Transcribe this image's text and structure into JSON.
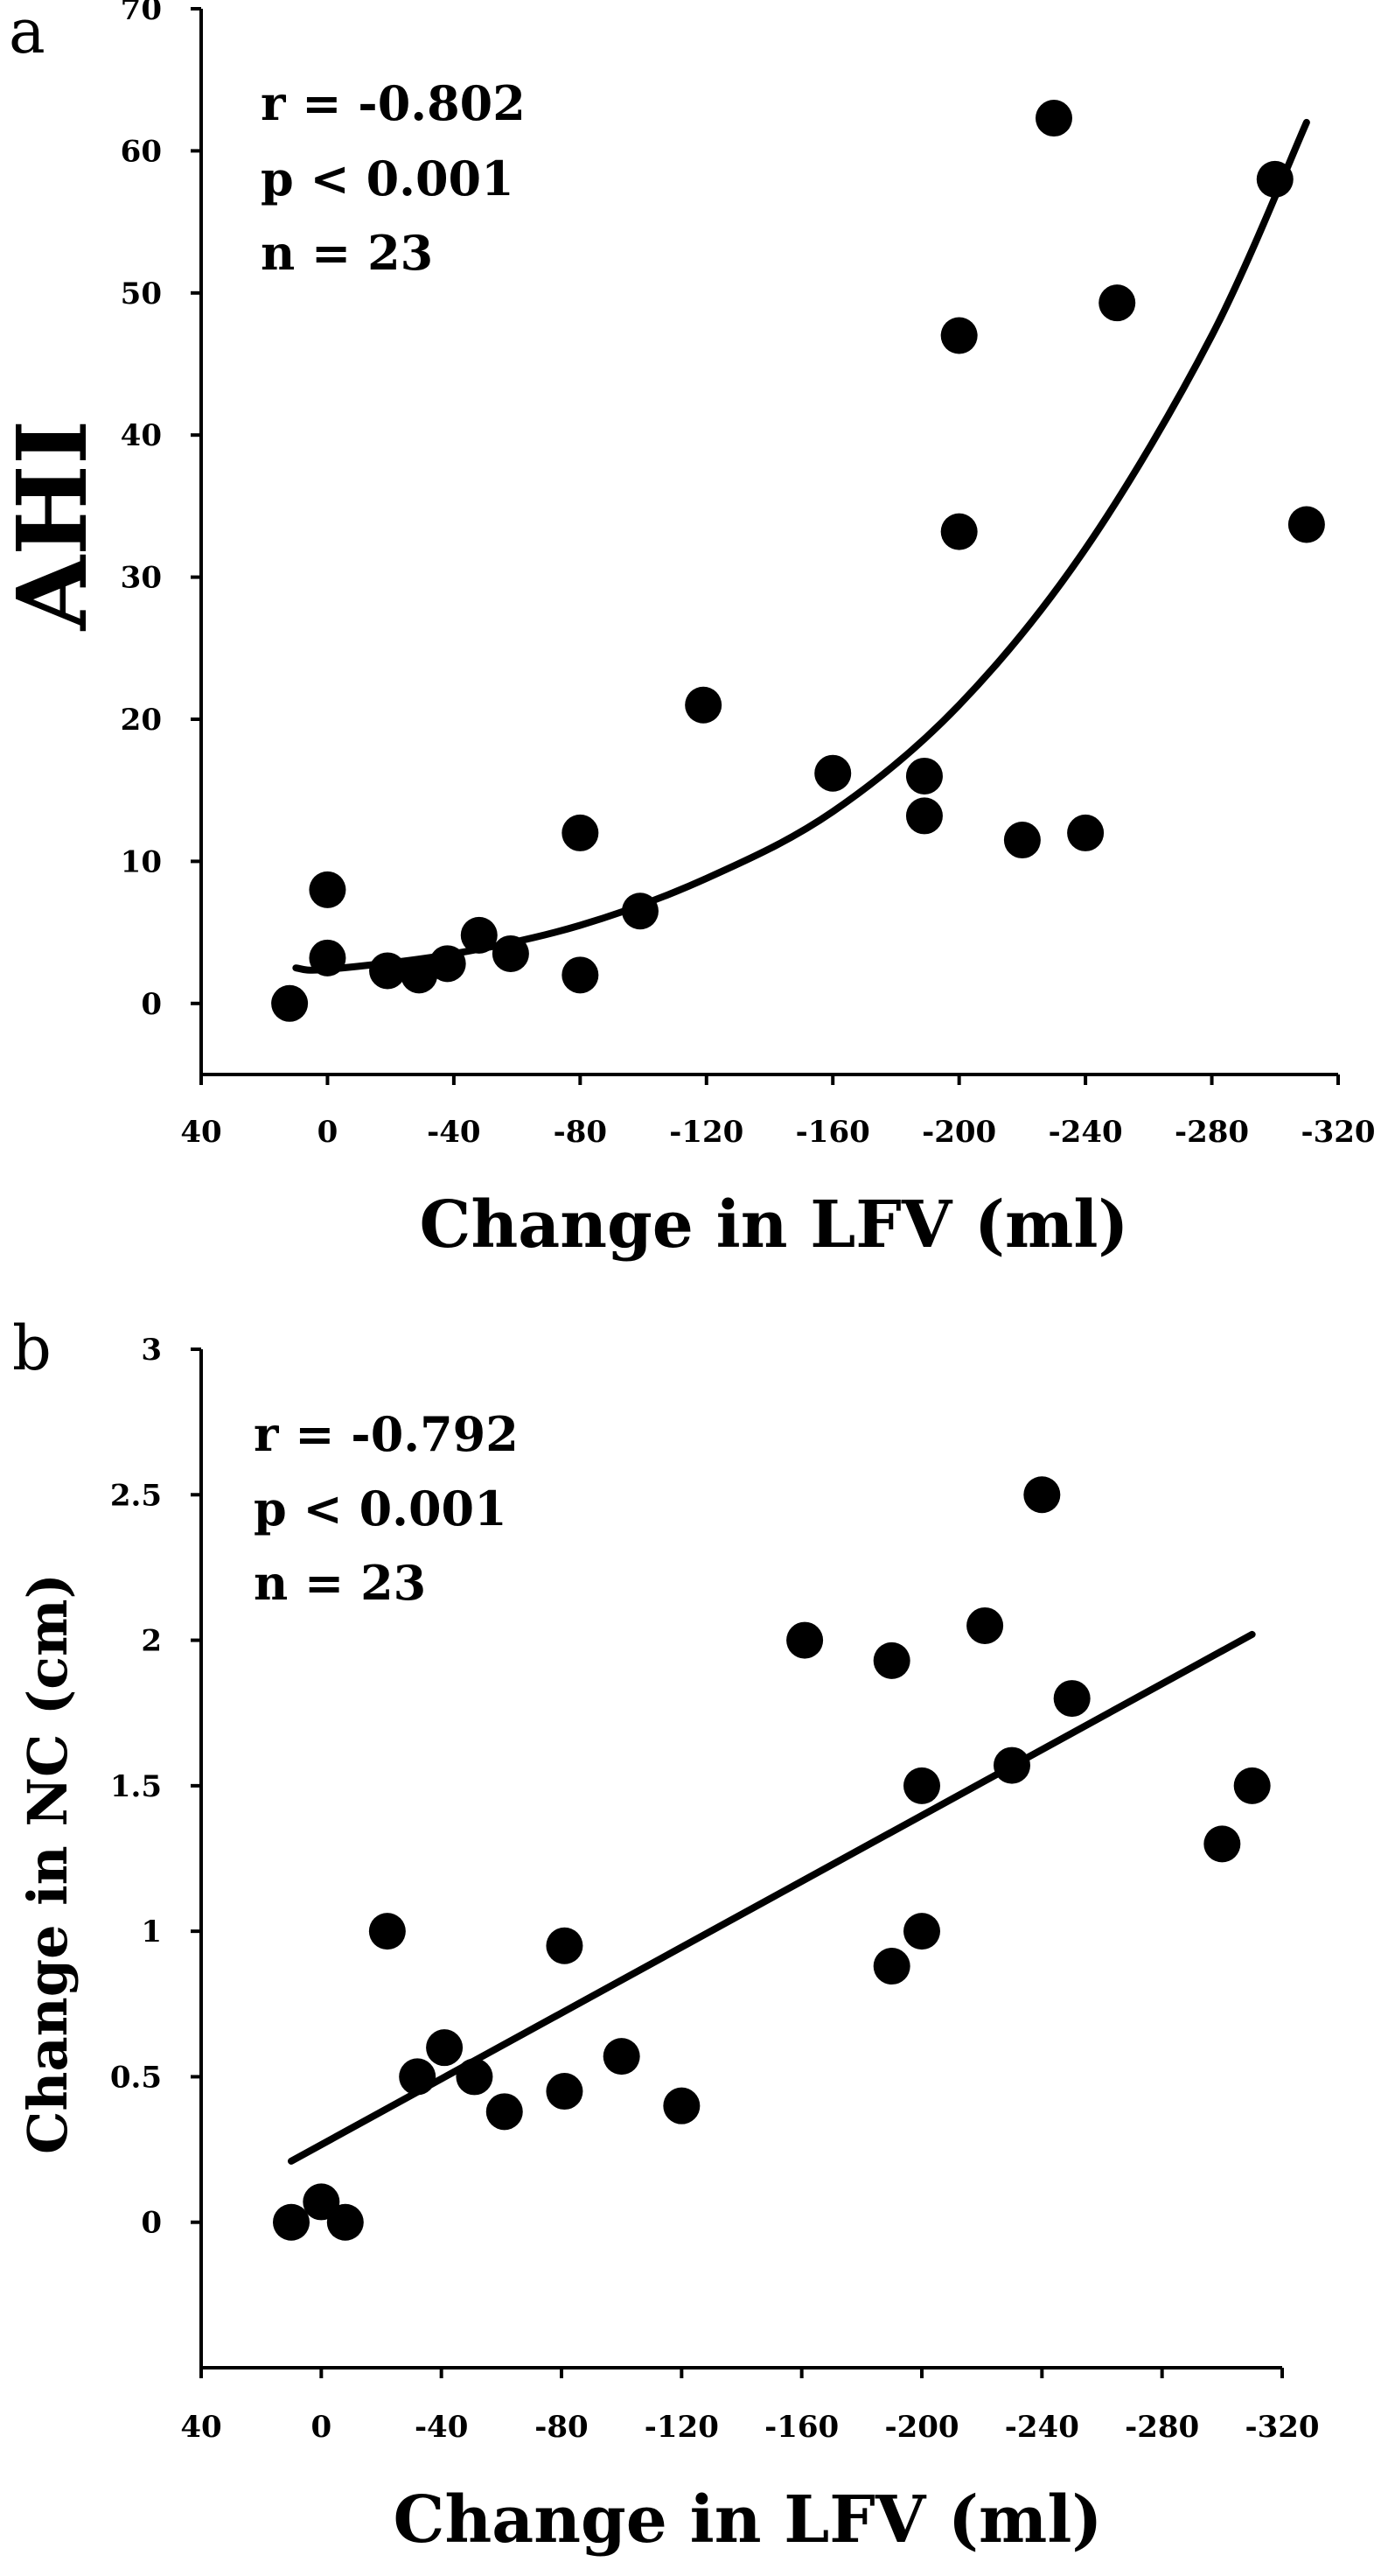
{
  "chart_data": [
    {
      "panel": "a",
      "type": "scatter",
      "xlabel": "Change in LFV (ml)",
      "ylabel": "AHI",
      "xlim": [
        40,
        -320
      ],
      "ylim": [
        -5,
        70
      ],
      "xticks": [
        40,
        0,
        -40,
        -80,
        -120,
        -160,
        -200,
        -240,
        -280,
        -320
      ],
      "xtick_labels": [
        "40",
        "0",
        "-40",
        "-80",
        "-120",
        "-160",
        "-200",
        "-240",
        "-280",
        "-320"
      ],
      "yticks": [
        0,
        10,
        20,
        30,
        40,
        50,
        60,
        70
      ],
      "ytick_labels": [
        "0",
        "10",
        "20",
        "30",
        "40",
        "50",
        "60",
        "70"
      ],
      "stats": [
        "r = -0.802",
        "p < 0.001",
        "n = 23"
      ],
      "points": [
        {
          "x": 12,
          "y": 0
        },
        {
          "x": 0,
          "y": 8
        },
        {
          "x": 0,
          "y": 3.2
        },
        {
          "x": -19,
          "y": 2.3
        },
        {
          "x": -29,
          "y": 2
        },
        {
          "x": -38,
          "y": 2.8
        },
        {
          "x": -48,
          "y": 4.8
        },
        {
          "x": -58,
          "y": 3.5
        },
        {
          "x": -80,
          "y": 12
        },
        {
          "x": -80,
          "y": 2
        },
        {
          "x": -99,
          "y": 6.5
        },
        {
          "x": -119,
          "y": 21
        },
        {
          "x": -160,
          "y": 16.2
        },
        {
          "x": -189,
          "y": 16
        },
        {
          "x": -189,
          "y": 13.2
        },
        {
          "x": -200,
          "y": 47
        },
        {
          "x": -200,
          "y": 33.2
        },
        {
          "x": -220,
          "y": 11.5
        },
        {
          "x": -230,
          "y": 62.3
        },
        {
          "x": -240,
          "y": 12
        },
        {
          "x": -250,
          "y": 49.3
        },
        {
          "x": -300,
          "y": 58
        },
        {
          "x": -310,
          "y": 33.7
        }
      ],
      "fit": {
        "type": "exponential",
        "x": [
          10,
          0,
          -40,
          -80,
          -120,
          -160,
          -200,
          -240,
          -280,
          -310
        ],
        "y": [
          2.5,
          2.4,
          3.5,
          5.5,
          8.8,
          13.5,
          21,
          32,
          47,
          62
        ]
      }
    },
    {
      "panel": "b",
      "type": "scatter",
      "xlabel": "Change in LFV (ml)",
      "ylabel": "Change in NC (cm)",
      "xlim": [
        40,
        -320
      ],
      "ylim": [
        -0.5,
        3
      ],
      "xticks": [
        40,
        0,
        -40,
        -80,
        -120,
        -160,
        -200,
        -240,
        -280,
        -320
      ],
      "xtick_labels": [
        "40",
        "0",
        "-40",
        "-80",
        "-120",
        "-160",
        "-200",
        "-240",
        "-280",
        "-320"
      ],
      "yticks": [
        0,
        0.5,
        1,
        1.5,
        2,
        2.5,
        3
      ],
      "ytick_labels": [
        "0",
        "0.5",
        "1",
        "1.5",
        "2",
        "2.5",
        "3"
      ],
      "stats": [
        "r = -0.792",
        "p < 0.001",
        "n = 23"
      ],
      "points": [
        {
          "x": 10,
          "y": 0
        },
        {
          "x": 0,
          "y": 0.07
        },
        {
          "x": -8,
          "y": 0
        },
        {
          "x": -22,
          "y": 1
        },
        {
          "x": -32,
          "y": 0.5
        },
        {
          "x": -41,
          "y": 0.6
        },
        {
          "x": -51,
          "y": 0.5
        },
        {
          "x": -61,
          "y": 0.38
        },
        {
          "x": -81,
          "y": 0.95
        },
        {
          "x": -81,
          "y": 0.45
        },
        {
          "x": -100,
          "y": 0.57
        },
        {
          "x": -120,
          "y": 0.4
        },
        {
          "x": -161,
          "y": 2
        },
        {
          "x": -190,
          "y": 1.93
        },
        {
          "x": -190,
          "y": 0.88
        },
        {
          "x": -200,
          "y": 1.5
        },
        {
          "x": -200,
          "y": 1
        },
        {
          "x": -221,
          "y": 2.05
        },
        {
          "x": -230,
          "y": 1.57
        },
        {
          "x": -240,
          "y": 2.5
        },
        {
          "x": -250,
          "y": 1.8
        },
        {
          "x": -300,
          "y": 1.3
        },
        {
          "x": -310,
          "y": 1.5
        }
      ],
      "fit": {
        "type": "linear",
        "x": [
          10,
          -310
        ],
        "y": [
          0.21,
          2.02
        ]
      }
    }
  ]
}
